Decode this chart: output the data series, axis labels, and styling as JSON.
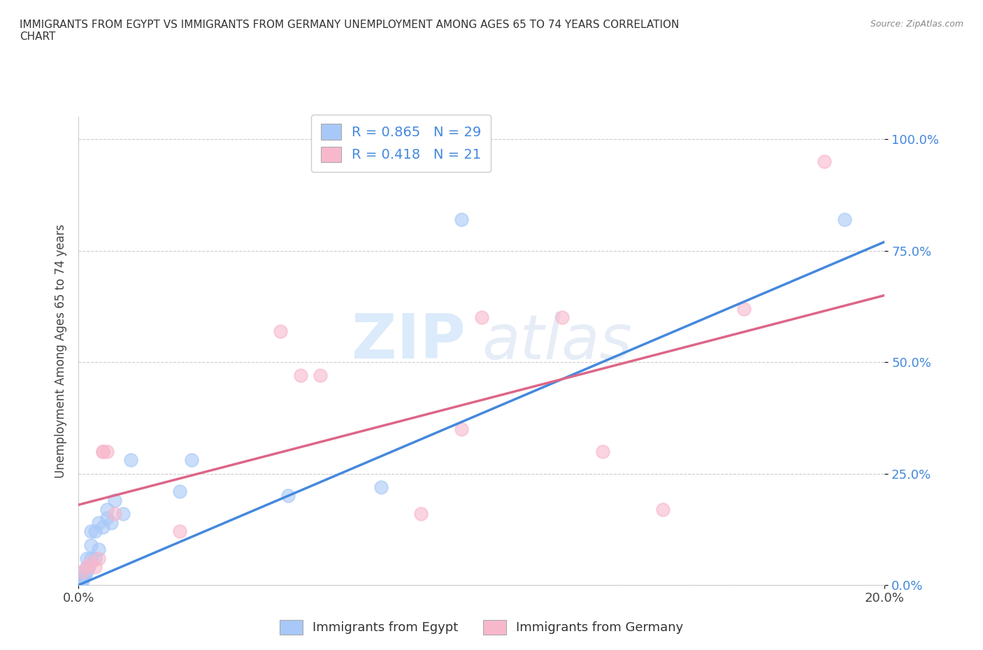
{
  "title": "IMMIGRANTS FROM EGYPT VS IMMIGRANTS FROM GERMANY UNEMPLOYMENT AMONG AGES 65 TO 74 YEARS CORRELATION\nCHART",
  "source": "Source: ZipAtlas.com",
  "ylabel": "Unemployment Among Ages 65 to 74 years",
  "xlim": [
    0.0,
    0.2
  ],
  "ylim": [
    0.0,
    1.05
  ],
  "yticks": [
    0.0,
    0.25,
    0.5,
    0.75,
    1.0
  ],
  "ytick_labels": [
    "0.0%",
    "25.0%",
    "50.0%",
    "75.0%",
    "100.0%"
  ],
  "xtick_vals": [
    0.0,
    0.2
  ],
  "xtick_labels": [
    "0.0%",
    "20.0%"
  ],
  "egypt_color": "#a8c8f8",
  "germany_color": "#f8b8cc",
  "egypt_line_color": "#4488dd",
  "germany_line_color": "#dd6688",
  "egypt_R": 0.865,
  "egypt_N": 29,
  "germany_R": 0.418,
  "germany_N": 21,
  "legend_label_egypt": "Immigrants from Egypt",
  "legend_label_germany": "Immigrants from Germany",
  "watermark_zip": "ZIP",
  "watermark_atlas": "atlas",
  "background_color": "#ffffff",
  "egypt_x": [
    0.0005,
    0.001,
    0.001,
    0.001,
    0.0015,
    0.002,
    0.002,
    0.002,
    0.0025,
    0.003,
    0.003,
    0.003,
    0.004,
    0.004,
    0.005,
    0.005,
    0.006,
    0.007,
    0.007,
    0.008,
    0.009,
    0.011,
    0.013,
    0.025,
    0.028,
    0.052,
    0.075,
    0.095,
    0.19
  ],
  "egypt_y": [
    0.005,
    0.01,
    0.02,
    0.03,
    0.02,
    0.03,
    0.04,
    0.06,
    0.04,
    0.06,
    0.09,
    0.12,
    0.06,
    0.12,
    0.08,
    0.14,
    0.13,
    0.15,
    0.17,
    0.14,
    0.19,
    0.16,
    0.28,
    0.21,
    0.28,
    0.2,
    0.22,
    0.82,
    0.82
  ],
  "germany_x": [
    0.001,
    0.002,
    0.003,
    0.004,
    0.005,
    0.006,
    0.006,
    0.007,
    0.009,
    0.025,
    0.05,
    0.055,
    0.06,
    0.085,
    0.095,
    0.1,
    0.12,
    0.13,
    0.145,
    0.165,
    0.185
  ],
  "germany_y": [
    0.03,
    0.04,
    0.05,
    0.04,
    0.06,
    0.3,
    0.3,
    0.3,
    0.16,
    0.12,
    0.57,
    0.47,
    0.47,
    0.16,
    0.35,
    0.6,
    0.6,
    0.3,
    0.17,
    0.62,
    0.95
  ],
  "egypt_line_x0": 0.0,
  "egypt_line_y0": 0.0,
  "egypt_line_x1": 0.2,
  "egypt_line_y1": 0.77,
  "germany_line_x0": 0.0,
  "germany_line_y0": 0.18,
  "germany_line_x1": 0.2,
  "germany_line_y1": 0.65
}
